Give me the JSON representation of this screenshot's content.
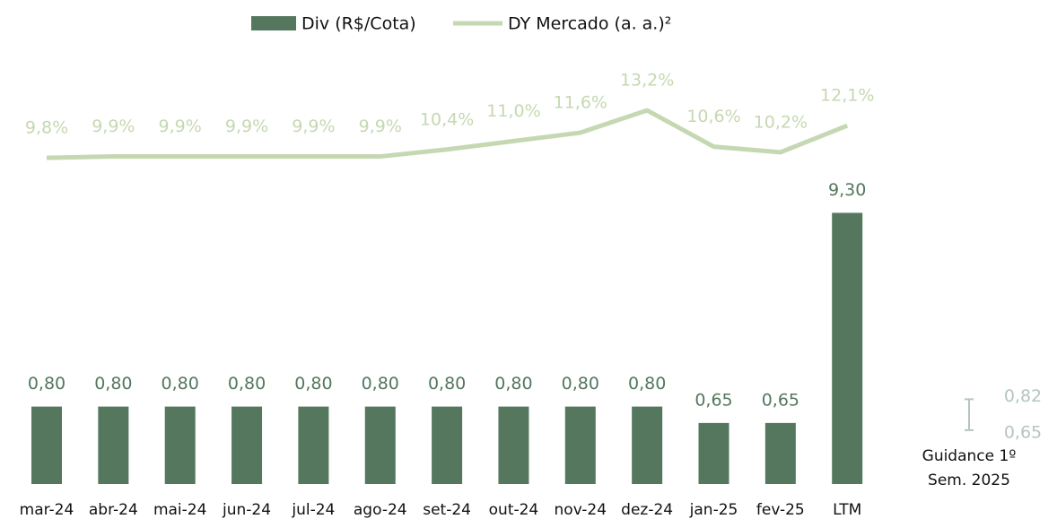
{
  "chart_data": {
    "type": "bar_line",
    "categories": [
      "mar-24",
      "abr-24",
      "mai-24",
      "jun-24",
      "jul-24",
      "ago-24",
      "set-24",
      "out-24",
      "nov-24",
      "dez-24",
      "jan-25",
      "fev-25",
      "LTM"
    ],
    "log": true,
    "ylim": [
      0.3,
      12
    ],
    "y2lim": [
      0,
      20
    ],
    "legend": "top",
    "series": [
      {
        "name": "Div (R$/Cota)",
        "type": "bar",
        "color": "#54775e",
        "values": [
          0.8,
          0.8,
          0.8,
          0.8,
          0.8,
          0.8,
          0.8,
          0.8,
          0.8,
          0.8,
          0.65,
          0.65,
          9.3
        ],
        "value_labels": [
          "0,80",
          "0,80",
          "0,80",
          "0,80",
          "0,80",
          "0,80",
          "0,80",
          "0,80",
          "0,80",
          "0,80",
          "0,65",
          "0,65",
          "9,30"
        ]
      },
      {
        "name": "DY Mercado (a. a.)²",
        "type": "line",
        "axis": "y2",
        "color": "#c5d8b2",
        "values": [
          9.8,
          9.9,
          9.9,
          9.9,
          9.9,
          9.9,
          10.4,
          11.0,
          11.6,
          13.2,
          10.6,
          10.2,
          12.1
        ],
        "value_labels": [
          "9,8%",
          "9,9%",
          "9,9%",
          "9,9%",
          "9,9%",
          "9,9%",
          "10,4%",
          "11,0%",
          "11,6%",
          "13,2%",
          "10,6%",
          "10,2%",
          "12,1%"
        ]
      }
    ],
    "guidance": {
      "label_lines": [
        "Guidance 1º",
        "Sem. 2025"
      ],
      "low": 0.65,
      "high": 0.82,
      "low_label": "0,65",
      "high_label": "0,82",
      "color": "#b5c6be"
    }
  }
}
